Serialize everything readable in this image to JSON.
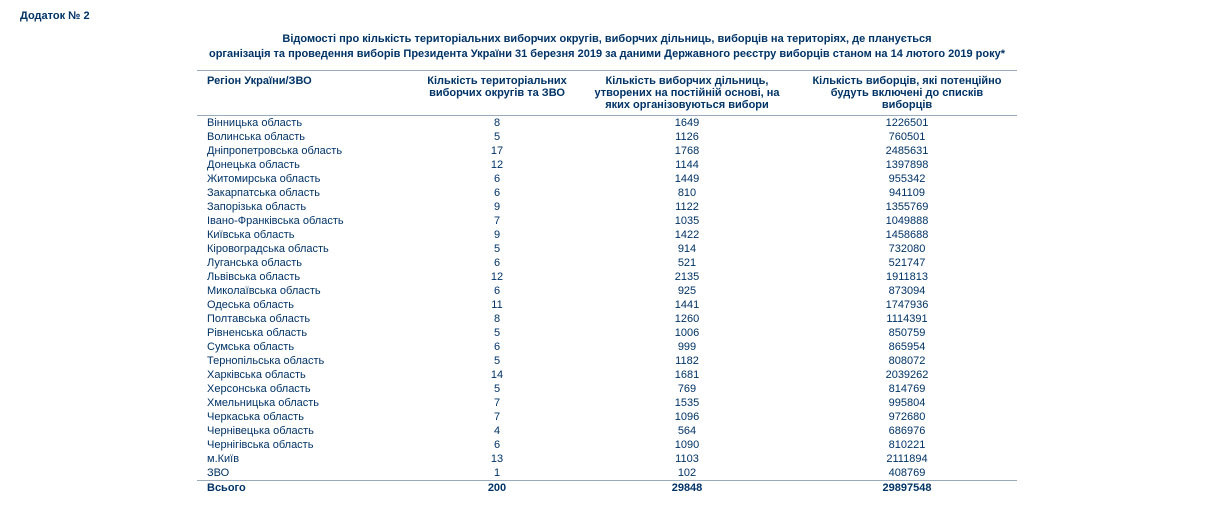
{
  "appendix": "Додаток № 2",
  "title_line1": "Відомості про кількість територіальних виборчих округів, виборчих дільниць, виборців на територіях, де планується",
  "title_line2": "організація та проведення виборів Президента України 31 березня 2019 за даними Державного реєстру виборців станом на 14 лютого 2019 року*",
  "headers": {
    "region": "Регіон України/ЗВО",
    "districts": "Кількість територіальних виборчих округів та ЗВО",
    "precincts": "Кількість виборчих дільниць, утворених на постійній основі, на яких організовуються вибори",
    "voters": "Кількість виборців, які потенційно будуть включені до списків виборців"
  },
  "rows": [
    {
      "region": "Вінницька область",
      "districts": "8",
      "precincts": "1649",
      "voters": "1226501"
    },
    {
      "region": "Волинська область",
      "districts": "5",
      "precincts": "1126",
      "voters": "760501"
    },
    {
      "region": "Дніпропетровська область",
      "districts": "17",
      "precincts": "1768",
      "voters": "2485631"
    },
    {
      "region": "Донецька область",
      "districts": "12",
      "precincts": "1144",
      "voters": "1397898"
    },
    {
      "region": "Житомирська область",
      "districts": "6",
      "precincts": "1449",
      "voters": "955342"
    },
    {
      "region": "Закарпатська область",
      "districts": "6",
      "precincts": "810",
      "voters": "941109"
    },
    {
      "region": "Запорізька область",
      "districts": "9",
      "precincts": "1122",
      "voters": "1355769"
    },
    {
      "region": "Івано-Франківська область",
      "districts": "7",
      "precincts": "1035",
      "voters": "1049888"
    },
    {
      "region": "Київська область",
      "districts": "9",
      "precincts": "1422",
      "voters": "1458688"
    },
    {
      "region": "Кіровоградська область",
      "districts": "5",
      "precincts": "914",
      "voters": "732080"
    },
    {
      "region": "Луганська область",
      "districts": "6",
      "precincts": "521",
      "voters": "521747"
    },
    {
      "region": "Львівська область",
      "districts": "12",
      "precincts": "2135",
      "voters": "1911813"
    },
    {
      "region": "Миколаївська область",
      "districts": "6",
      "precincts": "925",
      "voters": "873094"
    },
    {
      "region": "Одеська область",
      "districts": "11",
      "precincts": "1441",
      "voters": "1747936"
    },
    {
      "region": "Полтавська область",
      "districts": "8",
      "precincts": "1260",
      "voters": "1114391"
    },
    {
      "region": "Рівненська область",
      "districts": "5",
      "precincts": "1006",
      "voters": "850759"
    },
    {
      "region": "Сумська область",
      "districts": "6",
      "precincts": "999",
      "voters": "865954"
    },
    {
      "region": "Тернопільська область",
      "districts": "5",
      "precincts": "1182",
      "voters": "808072"
    },
    {
      "region": "Харківська область",
      "districts": "14",
      "precincts": "1681",
      "voters": "2039262"
    },
    {
      "region": "Херсонська область",
      "districts": "5",
      "precincts": "769",
      "voters": "814769"
    },
    {
      "region": "Хмельницька область",
      "districts": "7",
      "precincts": "1535",
      "voters": "995804"
    },
    {
      "region": "Черкаська область",
      "districts": "7",
      "precincts": "1096",
      "voters": "972680"
    },
    {
      "region": "Чернівецька область",
      "districts": "4",
      "precincts": "564",
      "voters": "686976"
    },
    {
      "region": "Чернігівська область",
      "districts": "6",
      "precincts": "1090",
      "voters": "810221"
    },
    {
      "region": "м.Київ",
      "districts": "13",
      "precincts": "1103",
      "voters": "2111894"
    },
    {
      "region": "ЗВО",
      "districts": "1",
      "precincts": "102",
      "voters": "408769"
    }
  ],
  "total": {
    "region": "Всього",
    "districts": "200",
    "precincts": "29848",
    "voters": "29897548"
  }
}
